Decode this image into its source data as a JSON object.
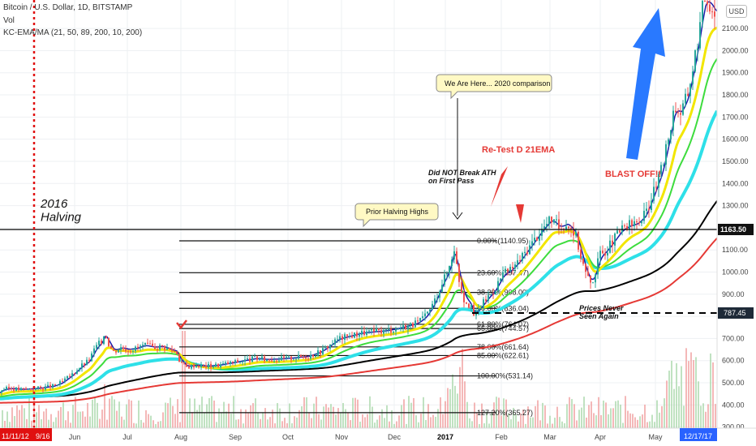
{
  "header": {
    "symbol_line": "Bitcoin / U.S. Dollar, 1D, BITSTAMP",
    "vol_label": "Vol",
    "indicator_line": "KC-EMA/MA (21, 50, 89, 200, 10, 200)",
    "currency_button": "USD"
  },
  "chart_data": {
    "type": "line",
    "title": "Bitcoin / U.S. Dollar, 1D, BITSTAMP",
    "price_axis": {
      "ticks": [
        "2100.00",
        "2000.00",
        "1900.00",
        "1800.00",
        "1700.00",
        "1600.00",
        "1500.00",
        "1400.00",
        "1300.00",
        "1200.00",
        "1100.00",
        "1000.00",
        "900.00",
        "800.00",
        "700.00",
        "600.00",
        "500.00",
        "400.00",
        "300.00"
      ],
      "ylim": [
        295,
        2190
      ]
    },
    "time_axis": {
      "labels": [
        "Jun",
        "Jul",
        "Aug",
        "Sep",
        "Oct",
        "Nov",
        "Dec",
        "2017",
        "Feb",
        "Mar",
        "Apr",
        "May"
      ],
      "start_badge": "11/11/12",
      "start_badge_2": "9/16",
      "end_badge": "12/17/17"
    },
    "price_badges": [
      {
        "value": "1163.50",
        "style": "black"
      },
      {
        "value": "787.45",
        "style": "dark"
      }
    ],
    "fib_levels": [
      {
        "label": "0.00%(1140.95)",
        "price": 1141
      },
      {
        "label": "23.60%(997.47)",
        "price": 997
      },
      {
        "label": "38.20%(908.00)",
        "price": 908
      },
      {
        "label": "50.00%(836.04)",
        "price": 836
      },
      {
        "label": "61.80%(764.07)",
        "price": 764
      },
      {
        "label": "65.00%(744.57)",
        "price": 745
      },
      {
        "label": "78.60%(661.64)",
        "price": 662
      },
      {
        "label": "85.00%(622.61)",
        "price": 623
      },
      {
        "label": "100.00%(531.14)",
        "price": 531
      },
      {
        "label": "127.20%(365.27)",
        "price": 365
      }
    ],
    "annotations": {
      "halving": "2016\nHalving",
      "prior_highs": "Prior Halving Highs",
      "we_are_here": "We Are Here... 2020 comparison",
      "did_not_break": "Did NOT Break ATH\non First Pass",
      "retest": "Re-Test D 21EMA",
      "blast_off": "BLAST OFF!!",
      "never_again": "Prices Never\nSeen Again"
    },
    "series": [
      {
        "name": "Price",
        "color": "#26a69a"
      },
      {
        "name": "EMA 21",
        "color": "#1a1aa8"
      },
      {
        "name": "EMA 50",
        "color": "#f2e600"
      },
      {
        "name": "EMA 89",
        "color": "#3ddc3d"
      },
      {
        "name": "EMA 200",
        "color": "#2ee0e8"
      },
      {
        "name": "MA 200",
        "color": "#e53935"
      },
      {
        "name": "MA 10",
        "color": "#000000"
      }
    ],
    "price_path": [
      [
        0,
        455
      ],
      [
        3,
        470
      ],
      [
        13,
        475
      ],
      [
        26,
        470
      ],
      [
        36,
        472
      ],
      [
        46,
        475
      ],
      [
        56,
        480
      ],
      [
        66,
        485
      ],
      [
        76,
        500
      ],
      [
        90,
        540
      ],
      [
        100,
        575
      ],
      [
        110,
        600
      ],
      [
        118,
        660
      ],
      [
        126,
        690
      ],
      [
        130,
        730
      ],
      [
        134,
        680
      ],
      [
        140,
        640
      ],
      [
        150,
        660
      ],
      [
        158,
        650
      ],
      [
        168,
        655
      ],
      [
        178,
        670
      ],
      [
        190,
        660
      ],
      [
        200,
        665
      ],
      [
        210,
        650
      ],
      [
        218,
        640
      ],
      [
        222,
        600
      ],
      [
        230,
        570
      ],
      [
        240,
        580
      ],
      [
        255,
        575
      ],
      [
        270,
        580
      ],
      [
        285,
        590
      ],
      [
        300,
        600
      ],
      [
        315,
        610
      ],
      [
        330,
        605
      ],
      [
        345,
        608
      ],
      [
        360,
        612
      ],
      [
        380,
        620
      ],
      [
        395,
        640
      ],
      [
        405,
        665
      ],
      [
        418,
        700
      ],
      [
        430,
        710
      ],
      [
        445,
        725
      ],
      [
        460,
        730
      ],
      [
        475,
        735
      ],
      [
        490,
        745
      ],
      [
        505,
        760
      ],
      [
        515,
        770
      ],
      [
        525,
        800
      ],
      [
        535,
        860
      ],
      [
        545,
        950
      ],
      [
        552,
        1000
      ],
      [
        557,
        1060
      ],
      [
        560,
        1125
      ],
      [
        565,
        990
      ],
      [
        572,
        880
      ],
      [
        580,
        850
      ],
      [
        585,
        800
      ],
      [
        592,
        840
      ],
      [
        600,
        880
      ],
      [
        610,
        920
      ],
      [
        620,
        990
      ],
      [
        630,
        1010
      ],
      [
        640,
        1050
      ],
      [
        650,
        1100
      ],
      [
        660,
        1150
      ],
      [
        670,
        1200
      ],
      [
        680,
        1240
      ],
      [
        690,
        1200
      ],
      [
        700,
        1220
      ],
      [
        710,
        1170
      ],
      [
        716,
        1080
      ],
      [
        722,
        1000
      ],
      [
        728,
        950
      ],
      [
        732,
        970
      ],
      [
        740,
        1080
      ],
      [
        748,
        1100
      ],
      [
        756,
        1140
      ],
      [
        766,
        1190
      ],
      [
        776,
        1210
      ],
      [
        786,
        1220
      ],
      [
        796,
        1260
      ],
      [
        806,
        1360
      ],
      [
        816,
        1460
      ],
      [
        824,
        1600
      ],
      [
        832,
        1750
      ],
      [
        840,
        1720
      ],
      [
        848,
        1800
      ],
      [
        856,
        1950
      ],
      [
        862,
        2080
      ],
      [
        866,
        2180
      ],
      [
        870,
        2250
      ],
      [
        878,
        2200
      ],
      [
        882,
        2170
      ]
    ]
  }
}
